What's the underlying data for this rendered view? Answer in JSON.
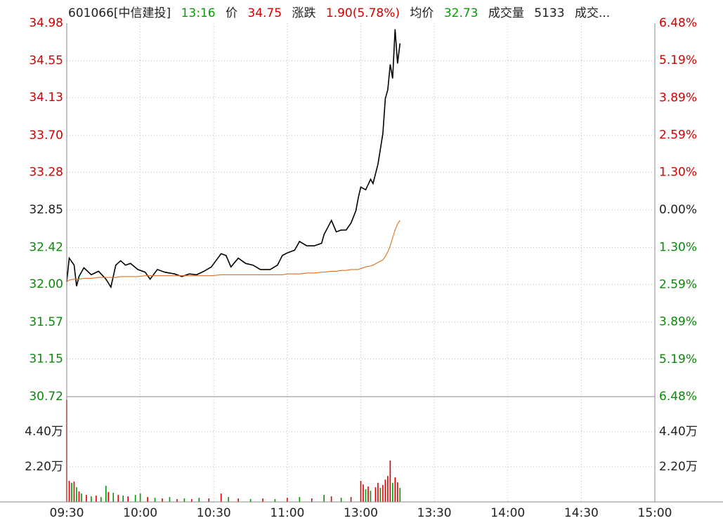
{
  "header": {
    "code": "601066[中信建投]",
    "time": "13:16",
    "price_label": "价",
    "price": "34.75",
    "change_label": "涨跌",
    "change": "1.90(5.78%)",
    "avg_label": "均价",
    "avg": "32.73",
    "volume_label": "成交量",
    "volume": "5133",
    "more": "成交..."
  },
  "chart_data": [
    {
      "type": "line",
      "x": [
        "09:30",
        "09:31",
        "09:33",
        "09:34",
        "09:35",
        "09:37",
        "09:40",
        "09:43",
        "09:46",
        "09:48",
        "09:50",
        "09:52",
        "09:54",
        "09:56",
        "09:59",
        "10:02",
        "10:04",
        "10:07",
        "10:10",
        "10:14",
        "10:17",
        "10:20",
        "10:23",
        "10:26",
        "10:29",
        "10:33",
        "10:35",
        "10:37",
        "10:40",
        "10:43",
        "10:46",
        "10:49",
        "10:53",
        "10:56",
        "10:58",
        "11:00",
        "11:03",
        "11:05",
        "11:08",
        "11:11",
        "11:14",
        "11:15",
        "11:18",
        "11:20",
        "11:22",
        "11:24",
        "11:26",
        "11:28",
        "11:29",
        "13:00",
        "13:02",
        "13:04",
        "13:05",
        "13:07",
        "13:09",
        "13:10",
        "13:11",
        "13:12",
        "13:13",
        "13:14",
        "13:15",
        "13:16"
      ],
      "series": [
        {
          "color": "#000000",
          "values": [
            32.03,
            32.3,
            32.22,
            31.98,
            32.09,
            32.19,
            32.11,
            32.15,
            32.06,
            31.97,
            32.22,
            32.27,
            32.22,
            32.24,
            32.17,
            32.14,
            32.06,
            32.17,
            32.14,
            32.12,
            32.09,
            32.12,
            32.11,
            32.15,
            32.2,
            32.35,
            32.33,
            32.2,
            32.3,
            32.24,
            32.22,
            32.17,
            32.17,
            32.22,
            32.33,
            32.36,
            32.39,
            32.49,
            32.44,
            32.44,
            32.47,
            32.57,
            32.73,
            32.6,
            32.62,
            32.62,
            32.7,
            32.84,
            32.99,
            33.11,
            33.08,
            33.2,
            33.15,
            33.37,
            33.72,
            34.12,
            34.22,
            34.51,
            34.35,
            34.91,
            34.52,
            34.75
          ]
        },
        {
          "color": "#e07020",
          "values": [
            32.03,
            32.05,
            32.06,
            32.06,
            32.06,
            32.07,
            32.07,
            32.08,
            32.08,
            32.08,
            32.08,
            32.09,
            32.09,
            32.09,
            32.09,
            32.1,
            32.1,
            32.1,
            32.1,
            32.1,
            32.1,
            32.1,
            32.1,
            32.1,
            32.1,
            32.11,
            32.11,
            32.11,
            32.11,
            32.11,
            32.11,
            32.11,
            32.11,
            32.11,
            32.11,
            32.12,
            32.12,
            32.12,
            32.13,
            32.13,
            32.14,
            32.14,
            32.15,
            32.15,
            32.16,
            32.16,
            32.17,
            32.17,
            32.17,
            32.18,
            32.2,
            32.21,
            32.22,
            32.25,
            32.28,
            32.32,
            32.37,
            32.44,
            32.53,
            32.62,
            32.69,
            32.73
          ]
        }
      ],
      "xlim": [
        "09:30",
        "15:00"
      ],
      "xticks": [
        "09:30",
        "10:00",
        "10:30",
        "11:00",
        "13:00",
        "13:30",
        "14:00",
        "14:30",
        "15:00"
      ],
      "ylim": [
        30.72,
        34.98
      ],
      "yticks": [
        34.98,
        34.55,
        34.13,
        {
          "value": 33.7,
          "label": "33.70"
        },
        33.28,
        32.85,
        32.42,
        {
          "value": 32,
          "label": "32.00"
        },
        31.57,
        31.15,
        30.72
      ],
      "y2lim": [
        -6.48,
        6.48
      ],
      "y2ticks": [
        {
          "value": 6.48,
          "label": "6.48%"
        },
        {
          "value": 5.19,
          "label": "5.19%"
        },
        {
          "value": 3.89,
          "label": "3.89%"
        },
        {
          "value": 2.59,
          "label": "2.59%"
        },
        {
          "value": 1.3,
          "label": "1.30%"
        },
        {
          "value": 0,
          "label": "0.00%"
        },
        {
          "value": -1.3,
          "label": "1.30%"
        },
        {
          "value": -2.59,
          "label": "2.59%"
        },
        {
          "value": -3.89,
          "label": "3.89%"
        },
        {
          "value": -5.19,
          "label": "5.19%"
        },
        {
          "value": -6.48,
          "label": "6.48%"
        }
      ],
      "baseline": 32.85,
      "up_color": "#d40000",
      "down_color": "#0a8a0a",
      "grid": true
    },
    {
      "type": "bar",
      "x": [
        "09:30",
        "09:31",
        "09:32",
        "09:33",
        "09:34",
        "09:35",
        "09:36",
        "09:38",
        "09:40",
        "09:42",
        "09:44",
        "09:46",
        "09:47",
        "09:49",
        "09:51",
        "09:53",
        "09:55",
        "09:58",
        "10:00",
        "10:03",
        "10:06",
        "10:09",
        "10:12",
        "10:15",
        "10:18",
        "10:21",
        "10:24",
        "10:28",
        "10:33",
        "10:36",
        "10:40",
        "10:45",
        "10:50",
        "10:55",
        "11:00",
        "11:05",
        "11:10",
        "11:15",
        "11:18",
        "11:22",
        "11:26",
        "13:00",
        "13:01",
        "13:02",
        "13:03",
        "13:04",
        "13:06",
        "13:07",
        "13:08",
        "13:09",
        "13:10",
        "13:11",
        "13:12",
        "13:13",
        "13:14",
        "13:15",
        "13:16"
      ],
      "values": [
        64000,
        13200,
        12000,
        12800,
        9200,
        6600,
        5300,
        4400,
        3500,
        4000,
        3100,
        10100,
        6200,
        5700,
        4400,
        4000,
        3500,
        4400,
        5300,
        3100,
        2600,
        2200,
        3100,
        1800,
        2200,
        1800,
        2600,
        2200,
        5300,
        3100,
        2200,
        1800,
        2200,
        1800,
        2600,
        3100,
        2200,
        4400,
        3500,
        2600,
        3100,
        13200,
        11000,
        7900,
        9700,
        7000,
        9200,
        12000,
        8800,
        10600,
        14000,
        16300,
        26000,
        12000,
        15400,
        12300,
        8800
      ],
      "colors": [
        "#e00000",
        "#e00000",
        "#009900",
        "#e00000",
        "#009900",
        "#e00000",
        "#009900",
        "#e00000",
        "#009900",
        "#e00000",
        "#009900",
        "#009900",
        "#e00000",
        "#009900",
        "#e00000",
        "#009900",
        "#e00000",
        "#009900",
        "#009900",
        "#e00000",
        "#009900",
        "#e00000",
        "#009900",
        "#e00000",
        "#009900",
        "#e00000",
        "#009900",
        "#e00000",
        "#e00000",
        "#009900",
        "#e00000",
        "#009900",
        "#e00000",
        "#009900",
        "#e00000",
        "#009900",
        "#e00000",
        "#009900",
        "#e00000",
        "#009900",
        "#e00000",
        "#e00000",
        "#e00000",
        "#009900",
        "#e00000",
        "#009900",
        "#e00000",
        "#e00000",
        "#009900",
        "#e00000",
        "#e00000",
        "#e00000",
        "#e00000",
        "#009900",
        "#e00000",
        "#e00000",
        "#009900"
      ],
      "xlim": [
        "09:30",
        "15:00"
      ],
      "ylim": [
        0,
        66000
      ],
      "yticks": [
        {
          "value": 44000,
          "label": "4.40万"
        },
        {
          "value": 22000,
          "label": "2.20万"
        }
      ],
      "grid": true
    }
  ]
}
